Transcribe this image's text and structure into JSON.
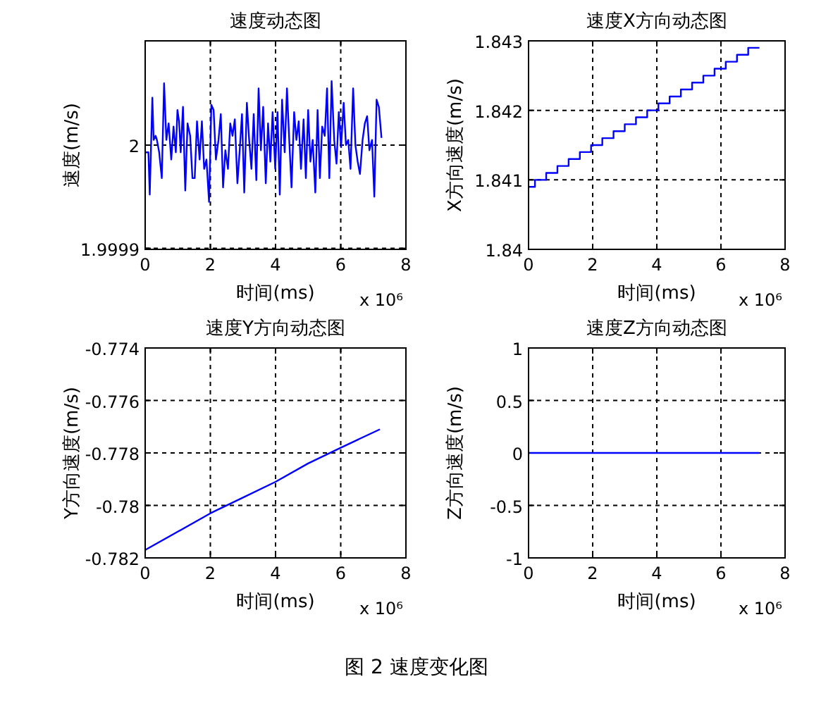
{
  "chart_data": [
    {
      "type": "line",
      "title": "速度动态图",
      "xlabel": "时间(ms)",
      "ylabel": "速度(m/s)",
      "xlim": [
        0,
        8
      ],
      "xticks": [
        0,
        2,
        4,
        6,
        8
      ],
      "ylim": [
        1.999899,
        2.000101
      ],
      "yticks": [
        1.9999,
        2
      ],
      "grid": true,
      "annotations": [
        "x 10⁶"
      ],
      "series": [
        {
          "color": "#0000ff",
          "x": [
            0,
            0.1,
            0.14,
            0.22,
            0.26,
            0.32,
            0.36,
            0.43,
            0.51,
            0.58,
            0.65,
            0.72,
            0.8,
            0.87,
            0.94,
            0.99,
            1.04,
            1.09,
            1.16,
            1.23,
            1.3,
            1.38,
            1.45,
            1.52,
            1.59,
            1.67,
            1.74,
            1.81,
            1.88,
            1.96,
            2.03,
            2.1,
            2.17,
            2.25,
            2.32,
            2.39,
            2.46,
            2.54,
            2.61,
            2.68,
            2.75,
            2.83,
            2.9,
            2.97,
            3.04,
            3.12,
            3.19,
            3.26,
            3.33,
            3.41,
            3.48,
            3.55,
            3.62,
            3.7,
            3.77,
            3.84,
            3.91,
            3.99,
            4.06,
            4.13,
            4.2,
            4.28,
            4.35,
            4.42,
            4.49,
            4.57,
            4.64,
            4.71,
            4.78,
            4.86,
            4.93,
            5.0,
            5.07,
            5.14,
            5.22,
            5.29,
            5.36,
            5.43,
            5.51,
            5.58,
            5.65,
            5.72,
            5.8,
            5.87,
            5.94,
            6.01,
            6.09,
            6.16,
            6.23,
            6.3,
            6.38,
            6.45,
            6.52,
            6.59,
            6.67,
            6.74,
            6.81,
            6.88,
            6.96,
            7.03,
            7.1,
            7.17,
            7.25
          ],
          "values": [
            1.999993,
            1.999993,
            1.999952,
            2.000046,
            2.000005,
            2.000009,
            2.000005,
            1.999993,
            1.999968,
            2.00006,
            2.000005,
            2.000021,
            1.999986,
            2.000018,
            1.999993,
            2.000034,
            2.000023,
            1.999993,
            2.000037,
            1.999956,
            2.000021,
            2.000009,
            1.999968,
            1.999968,
            2.000023,
            1.999986,
            2.000023,
            1.999977,
            1.999986,
            1.999945,
            2.000039,
            2.000034,
            1.999986,
            2.000005,
            2.00003,
            1.999959,
            1.999995,
            1.999977,
            2.000021,
            2.000009,
            2.000025,
            1.999963,
            1.999995,
            2.00003,
            1.999954,
            2.000041,
            2.000005,
            1.999977,
            2.00003,
            1.999966,
            2.000055,
            1.999995,
            2.000037,
            1.999963,
            2.000021,
            1.999984,
            2.000032,
            1.999977,
            2.000032,
            1.999952,
            2.000044,
            1.999993,
            2.000055,
            2.000005,
            1.999959,
            2.000032,
            2.000005,
            2.000023,
            1.999977,
            2.000025,
            1.999968,
            2.000034,
            1.999984,
            2.000005,
            1.999954,
            2.000034,
            1.999968,
            2.000018,
            2.000009,
            2.000055,
            1.999968,
            2.000062,
            2.000005,
            1.999982,
            2.000032,
            1.999998,
            2.000041,
            2.0,
            2.000005,
            1.999977,
            2.000055,
            2.0,
            1.999984,
            1.999972,
            2.000005,
            2.000021,
            2.000028,
            1.999995,
            2.000005,
            1.99995,
            2.000044,
            2.000037,
            2.000007
          ]
        }
      ]
    },
    {
      "type": "step",
      "title": "速度X方向动态图",
      "xlabel": "时间(ms)",
      "ylabel": "X方向速度(m/s)",
      "xlim": [
        0,
        8
      ],
      "xticks": [
        0,
        2,
        4,
        6,
        8
      ],
      "ylim": [
        1.84,
        1.843
      ],
      "yticks": [
        1.84,
        1.841,
        1.842,
        1.843
      ],
      "grid": true,
      "annotations": [
        "x 10⁶"
      ],
      "series": [
        {
          "color": "#0000ff",
          "x": [
            0,
            0.2,
            0.55,
            0.9,
            1.25,
            1.6,
            1.95,
            2.3,
            2.65,
            3.0,
            3.35,
            3.7,
            4.05,
            4.4,
            4.75,
            5.1,
            5.45,
            5.8,
            6.15,
            6.5,
            6.85,
            7.2
          ],
          "values": [
            1.8409,
            1.841,
            1.8411,
            1.8412,
            1.8413,
            1.8414,
            1.8415,
            1.8416,
            1.8417,
            1.8418,
            1.8419,
            1.842,
            1.8421,
            1.8422,
            1.8423,
            1.8424,
            1.8425,
            1.8426,
            1.8427,
            1.8428,
            1.8429,
            1.8429
          ]
        }
      ]
    },
    {
      "type": "line",
      "title": "速度Y方向动态图",
      "xlabel": "时间(ms)",
      "ylabel": "Y方向速度(m/s)",
      "xlim": [
        0,
        8
      ],
      "xticks": [
        0,
        2,
        4,
        6,
        8
      ],
      "ylim": [
        -0.782,
        -0.774
      ],
      "yticks": [
        -0.782,
        -0.78,
        -0.778,
        -0.776,
        -0.774
      ],
      "grid": true,
      "annotations": [
        "x 10⁶"
      ],
      "series": [
        {
          "color": "#0000ff",
          "x": [
            0,
            1,
            2,
            3,
            4,
            5,
            6,
            7.2
          ],
          "values": [
            -0.7817,
            -0.781,
            -0.7803,
            -0.7797,
            -0.7791,
            -0.7784,
            -0.7778,
            -0.7771
          ]
        }
      ]
    },
    {
      "type": "line",
      "title": "速度Z方向动态图",
      "xlabel": "时间(ms)",
      "ylabel": "Z方向速度(m/s)",
      "xlim": [
        0,
        8
      ],
      "xticks": [
        0,
        2,
        4,
        6,
        8
      ],
      "ylim": [
        -1,
        1
      ],
      "yticks": [
        -1,
        -0.5,
        0,
        0.5,
        1
      ],
      "grid": true,
      "annotations": [
        "x 10⁶"
      ],
      "series": [
        {
          "color": "#0000ff",
          "x": [
            0,
            7.2
          ],
          "values": [
            0,
            0
          ]
        }
      ]
    },
    {
      "type": "other",
      "annotations": [
        "图 2 速度变化图"
      ]
    }
  ]
}
